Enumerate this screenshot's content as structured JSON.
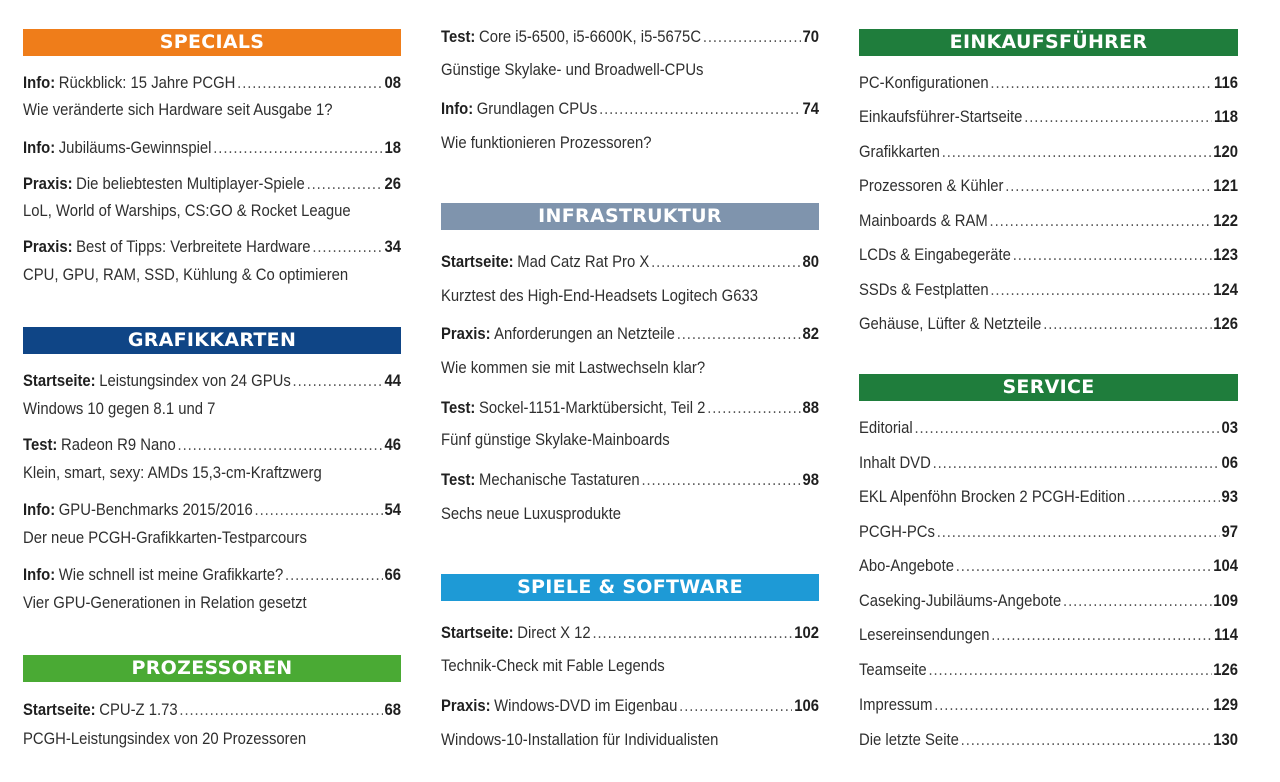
{
  "colors": {
    "specials": "#ef7d1a",
    "grafikkarten": "#0f4586",
    "prozessoren": "#4aaa34",
    "infrastruktur": "#7f94ad",
    "spiele": "#1e9ad6",
    "einkauf": "#1f7d3c",
    "service": "#1f7d3c"
  },
  "specials": {
    "header": "SPECIALS",
    "items": [
      {
        "category": "Info:",
        "title": "Rückblick: 15 Jahre PCGH",
        "page": "08",
        "subtitle": "Wie veränderte sich Hardware seit Ausgabe 1?"
      },
      {
        "category": "Info:",
        "title": "Jubiläums-Gewinnspiel",
        "page": "18"
      },
      {
        "category": "Praxis:",
        "title": "Die beliebtesten Multiplayer-Spiele",
        "page": "26",
        "subtitle": "LoL, World of Warships, CS:GO & Rocket League"
      },
      {
        "category": "Praxis:",
        "title": "Best of Tipps: Verbreitete Hardware",
        "page": "34",
        "subtitle": "CPU, GPU, RAM, SSD, Kühlung & Co optimieren"
      }
    ]
  },
  "grafikkarten": {
    "header": "GRAFIKKARTEN",
    "items": [
      {
        "category": "Startseite:",
        "title": "Leistungsindex von 24 GPUs",
        "page": "44",
        "subtitle": "Windows 10 gegen 8.1 und 7"
      },
      {
        "category": "Test:",
        "title": "Radeon R9 Nano",
        "page": "46",
        "subtitle": "Klein, smart, sexy: AMDs 15,3-cm-Kraftzwerg"
      },
      {
        "category": "Info:",
        "title": "GPU-Benchmarks 2015/2016",
        "page": "54",
        "subtitle": "Der neue PCGH-Grafikkarten-Testparcours"
      },
      {
        "category": "Info:",
        "title": "Wie schnell ist meine Grafikkarte?",
        "page": "66",
        "subtitle": "Vier GPU-Generationen in Relation gesetzt"
      }
    ]
  },
  "prozessoren": {
    "header": "PROZESSOREN",
    "items": [
      {
        "category": "Startseite:",
        "title": "CPU-Z 1.73",
        "page": "68",
        "subtitle": "PCGH-Leistungsindex von 20 Prozessoren"
      }
    ]
  },
  "prozessoren_cont": {
    "items": [
      {
        "category": "Test:",
        "title": "Core i5-6500, i5-6600K, i5-5675C",
        "page": "70",
        "subtitle": "Günstige Skylake- und Broadwell-CPUs"
      },
      {
        "category": "Info:",
        "title": "Grundlagen CPUs",
        "page": "74",
        "subtitle": "Wie funktionieren Prozessoren?"
      }
    ]
  },
  "infrastruktur": {
    "header": "INFRASTRUKTUR",
    "items": [
      {
        "category": "Startseite:",
        "title": "Mad Catz Rat Pro X",
        "page": "80",
        "subtitle": "Kurztest des High-End-Headsets Logitech G633"
      },
      {
        "category": "Praxis:",
        "title": "Anforderungen an Netzteile",
        "page": "82",
        "subtitle": "Wie kommen sie mit Lastwechseln klar?"
      },
      {
        "category": "Test:",
        "title": "Sockel-1151-Marktübersicht, Teil 2",
        "page": "88",
        "subtitle": "Fünf günstige Skylake-Mainboards"
      },
      {
        "category": "Test:",
        "title": "Mechanische Tastaturen",
        "page": "98",
        "subtitle": "Sechs neue Luxusprodukte"
      }
    ]
  },
  "spiele": {
    "header": "SPIELE & SOFTWARE",
    "items": [
      {
        "category": "Startseite:",
        "title": "Direct X 12",
        "page": "102",
        "subtitle": "Technik-Check mit Fable Legends"
      },
      {
        "category": "Praxis:",
        "title": "Windows-DVD im Eigenbau",
        "page": "106",
        "subtitle": "Windows-10-Installation für Individualisten"
      }
    ]
  },
  "einkauf": {
    "header": "EINKAUFSFÜHRER",
    "items": [
      {
        "title": "PC-Konfigurationen",
        "page": "116"
      },
      {
        "title": "Einkaufsführer-Startseite",
        "page": "118"
      },
      {
        "title": "Grafikkarten",
        "page": "120"
      },
      {
        "title": "Prozessoren & Kühler",
        "page": "121"
      },
      {
        "title": "Mainboards & RAM",
        "page": "122"
      },
      {
        "title": "LCDs & Eingabegeräte",
        "page": "123"
      },
      {
        "title": "SSDs & Festplatten",
        "page": "124"
      },
      {
        "title": "Gehäuse, Lüfter & Netzteile",
        "page": "126"
      }
    ]
  },
  "service": {
    "header": "SERVICE",
    "items": [
      {
        "title": "Editorial",
        "page": "03"
      },
      {
        "title": "Inhalt DVD",
        "page": "06"
      },
      {
        "title": "EKL Alpenföhn Brocken 2 PCGH-Edition",
        "page": "93"
      },
      {
        "title": "PCGH-PCs",
        "page": "97"
      },
      {
        "title": "Abo-Angebote",
        "page": "104"
      },
      {
        "title": "Caseking-Jubiläums-Angebote",
        "page": "109"
      },
      {
        "title": "Lesereinsendungen",
        "page": "114"
      },
      {
        "title": "Teamseite",
        "page": "126"
      },
      {
        "title": "Impressum",
        "page": "129"
      },
      {
        "title": "Die letzte Seite",
        "page": "130"
      }
    ]
  }
}
